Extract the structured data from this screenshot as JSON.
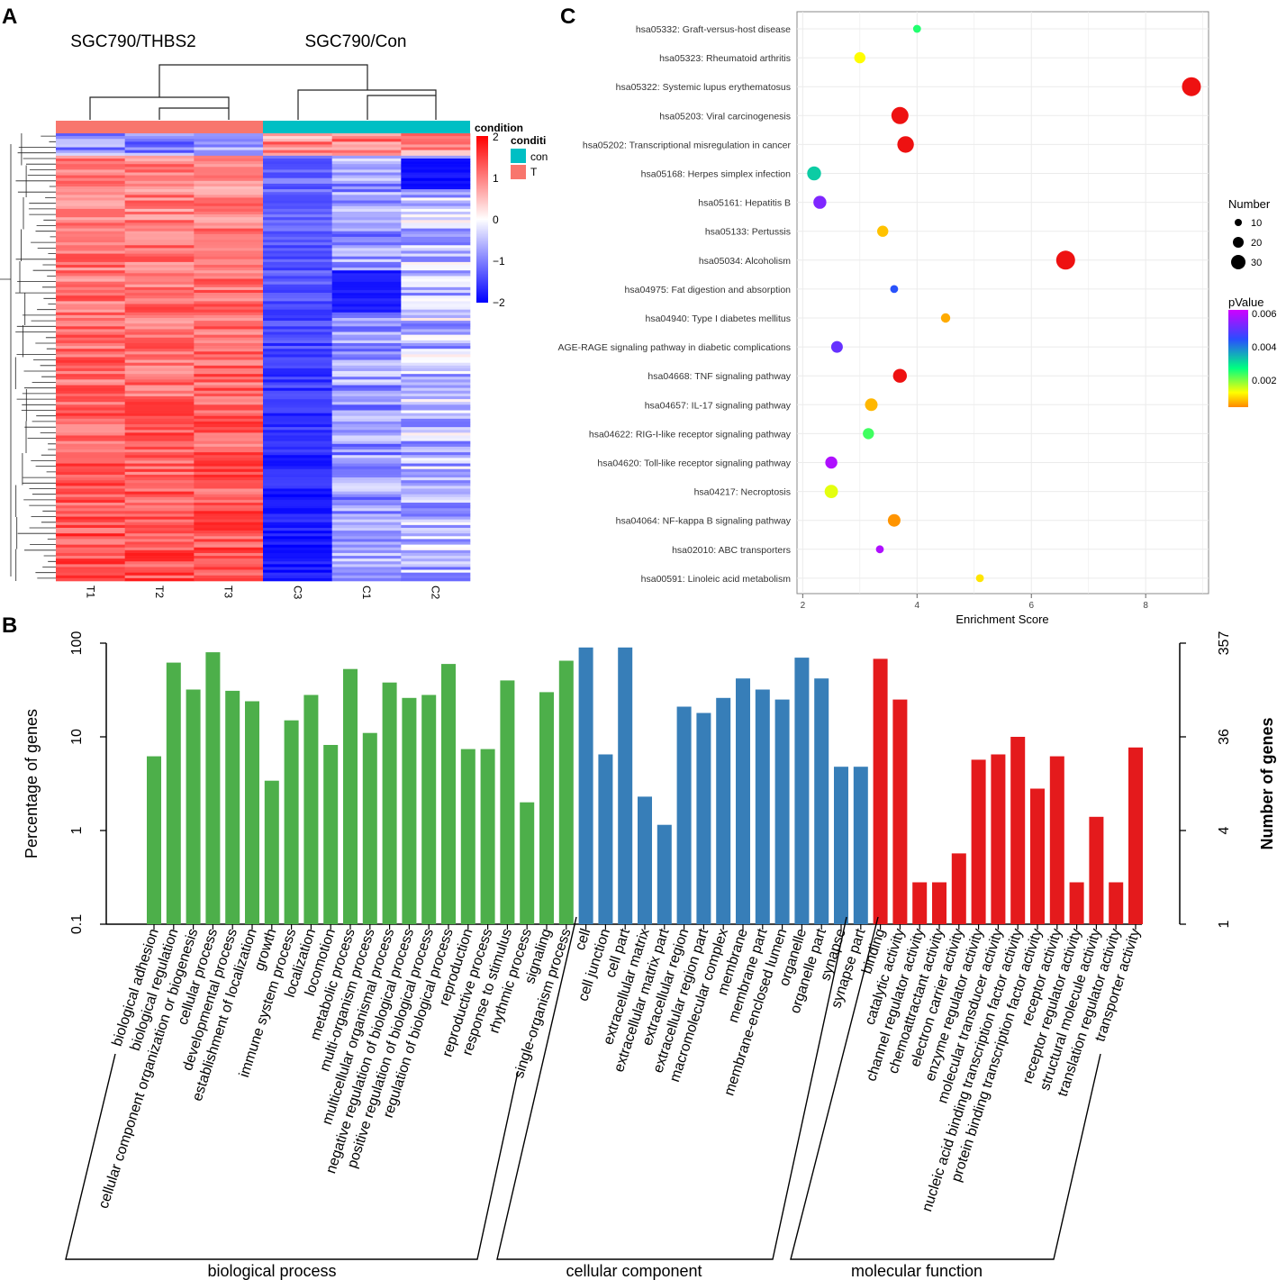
{
  "colors": {
    "bp": "#4daf4a",
    "cc": "#377eb8",
    "mf": "#e41a1c",
    "cond_t": "#f8766d",
    "cond_con": "#00bfc4",
    "heat_hi": "#ff0000",
    "heat_mid": "#ffffff",
    "heat_lo": "#0000ff"
  },
  "panels": {
    "a": "A",
    "b": "B",
    "c": "C"
  },
  "chart_data": [
    {
      "type": "heatmap",
      "panel": "A",
      "group_labels": [
        "SGC790/THBS2",
        "SGC790/Con"
      ],
      "columns": [
        "T1",
        "T2",
        "T3",
        "C3",
        "C1",
        "C2"
      ],
      "column_groups": [
        "T",
        "T",
        "T",
        "con",
        "con",
        "con"
      ],
      "color_scale": {
        "title": "condition",
        "ticks": [
          "2",
          "1",
          "0",
          "−1",
          "−2"
        ],
        "range": [
          -2,
          2
        ]
      },
      "condition_legend": {
        "title": "conditi",
        "entries": [
          {
            "label": "con",
            "color": "#00bfc4"
          },
          {
            "label": "T",
            "color": "#f8766d"
          }
        ]
      }
    },
    {
      "type": "scatter",
      "panel": "C",
      "xlabel": "Enrichment Score",
      "xticks": [
        "2",
        "4",
        "6",
        "8"
      ],
      "xlim": [
        1.9,
        9.1
      ],
      "size_legend": {
        "title": "Number",
        "entries": [
          "10",
          "20",
          "30"
        ]
      },
      "color_legend": {
        "title": "pValue",
        "ticks": [
          "0.006",
          "0.004",
          "0.002"
        ],
        "range": [
          0,
          0.0068
        ]
      },
      "points": [
        {
          "term": "hsa05332: Graft-versus-host disease",
          "score": 4.0,
          "number": 3,
          "pvalue": 0.0025
        },
        {
          "term": "hsa05323: Rheumatoid arthritis",
          "score": 3.0,
          "number": 8,
          "pvalue": 0.001
        },
        {
          "term": "hsa05322: Systemic lupus erythematosus",
          "score": 8.8,
          "number": 30,
          "pvalue": 0.0
        },
        {
          "term": "hsa05203: Viral carcinogenesis",
          "score": 3.7,
          "number": 24,
          "pvalue": 0.0
        },
        {
          "term": "hsa05202: Transcriptional misregulation in cancer",
          "score": 3.8,
          "number": 22,
          "pvalue": 0.0
        },
        {
          "term": "hsa05168: Herpes simplex infection",
          "score": 2.2,
          "number": 14,
          "pvalue": 0.0033
        },
        {
          "term": "hsa05161: Hepatitis B",
          "score": 2.3,
          "number": 12,
          "pvalue": 0.0058
        },
        {
          "term": "hsa05133: Pertussis",
          "score": 3.4,
          "number": 8,
          "pvalue": 0.0005
        },
        {
          "term": "hsa05034: Alcoholism",
          "score": 6.6,
          "number": 30,
          "pvalue": 0.0
        },
        {
          "term": "hsa04975: Fat digestion and absorption",
          "score": 3.6,
          "number": 3,
          "pvalue": 0.0047
        },
        {
          "term": "hsa04940: Type I diabetes mellitus",
          "score": 4.5,
          "number": 5,
          "pvalue": 0.0003
        },
        {
          "term": "AGE-RAGE signaling pathway in diabetic complications",
          "score": 2.6,
          "number": 9,
          "pvalue": 0.0055
        },
        {
          "term": "hsa04668: TNF signaling pathway",
          "score": 3.7,
          "number": 14,
          "pvalue": 0.0
        },
        {
          "term": "hsa04657: IL-17 signaling pathway",
          "score": 3.2,
          "number": 11,
          "pvalue": 0.0004
        },
        {
          "term": "hsa04622: RIG-I-like receptor signaling pathway",
          "score": 3.15,
          "number": 8,
          "pvalue": 0.0023
        },
        {
          "term": "hsa04620: Toll-like receptor signaling pathway",
          "score": 2.5,
          "number": 10,
          "pvalue": 0.0064
        },
        {
          "term": "hsa04217: Necroptosis",
          "score": 2.5,
          "number": 13,
          "pvalue": 0.0012
        },
        {
          "term": "hsa04064: NF-kappa B signaling pathway",
          "score": 3.6,
          "number": 11,
          "pvalue": 0.0001
        },
        {
          "term": "hsa02010: ABC transporters",
          "score": 3.35,
          "number": 3,
          "pvalue": 0.0064
        },
        {
          "term": "hsa00591: Linoleic acid metabolism",
          "score": 5.1,
          "number": 3,
          "pvalue": 0.0008
        }
      ]
    },
    {
      "type": "bar",
      "panel": "B",
      "scale": "log",
      "ylabel": "Percentage of genes",
      "y2label": "Number of genes",
      "yticks": [
        "100",
        "10",
        "1",
        "0.1"
      ],
      "y2ticks": [
        "357",
        "36",
        "4",
        "1"
      ],
      "ylim": [
        0.1,
        100
      ],
      "groups": [
        {
          "name": "biological process",
          "key": "bp",
          "categories": [
            {
              "label": "biological adhesion",
              "value": 6.2
            },
            {
              "label": "biological regulation",
              "value": 62
            },
            {
              "label": "cellular component organization or biogenesis",
              "value": 32
            },
            {
              "label": "cellular process",
              "value": 80
            },
            {
              "label": "developmental process",
              "value": 31
            },
            {
              "label": "establishment of localization",
              "value": 24
            },
            {
              "label": "growth",
              "value": 3.4
            },
            {
              "label": "immune system process",
              "value": 15
            },
            {
              "label": "localization",
              "value": 28
            },
            {
              "label": "locomotion",
              "value": 8.2
            },
            {
              "label": "metabolic process",
              "value": 53
            },
            {
              "label": "multi-organism process",
              "value": 11
            },
            {
              "label": "multicellular organismal process",
              "value": 38
            },
            {
              "label": "negative regulation of biological process",
              "value": 26
            },
            {
              "label": "positive regulation of biological process",
              "value": 28
            },
            {
              "label": "regulation of biological process",
              "value": 60
            },
            {
              "label": "reproduction",
              "value": 7.4
            },
            {
              "label": "reproductive process",
              "value": 7.4
            },
            {
              "label": "response to stimulus",
              "value": 40
            },
            {
              "label": "rhythmic process",
              "value": 2.0
            },
            {
              "label": "signaling",
              "value": 30
            },
            {
              "label": "single-organism process",
              "value": 65
            }
          ]
        },
        {
          "name": "cellular component",
          "key": "cc",
          "categories": [
            {
              "label": "cell",
              "value": 90
            },
            {
              "label": "cell junction",
              "value": 6.5
            },
            {
              "label": "cell part",
              "value": 90
            },
            {
              "label": "extracellular matrix",
              "value": 2.3
            },
            {
              "label": "extracellular matrix part",
              "value": 1.15
            },
            {
              "label": "extracellular region",
              "value": 21
            },
            {
              "label": "extracellular region part",
              "value": 18
            },
            {
              "label": "macromolecular complex",
              "value": 26
            },
            {
              "label": "membrane",
              "value": 42
            },
            {
              "label": "membrane part",
              "value": 32
            },
            {
              "label": "membrane-enclosed lumen",
              "value": 25
            },
            {
              "label": "organelle",
              "value": 70
            },
            {
              "label": "organelle part",
              "value": 42
            },
            {
              "label": "synapse",
              "value": 4.8
            },
            {
              "label": "synapse part",
              "value": 4.8
            }
          ]
        },
        {
          "name": "molecular function",
          "key": "mf",
          "categories": [
            {
              "label": "binding",
              "value": 68
            },
            {
              "label": "catalytic activity",
              "value": 25
            },
            {
              "label": "channel regulator activity",
              "value": 0.28
            },
            {
              "label": "chemoattractant activity",
              "value": 0.28
            },
            {
              "label": "electron carrier activity",
              "value": 0.57
            },
            {
              "label": "enzyme regulator activity",
              "value": 5.7
            },
            {
              "label": "molecular transducer activity",
              "value": 6.5
            },
            {
              "label": "nucleic acid binding transcription factor activity",
              "value": 10
            },
            {
              "label": "protein binding transcription factor activity",
              "value": 2.8
            },
            {
              "label": "receptor activity",
              "value": 6.2
            },
            {
              "label": "receptor regulator activity",
              "value": 0.28
            },
            {
              "label": "structural molecule activity",
              "value": 1.4
            },
            {
              "label": "translation regulator activity",
              "value": 0.28
            },
            {
              "label": "transporter activity",
              "value": 7.7
            }
          ]
        }
      ]
    }
  ]
}
